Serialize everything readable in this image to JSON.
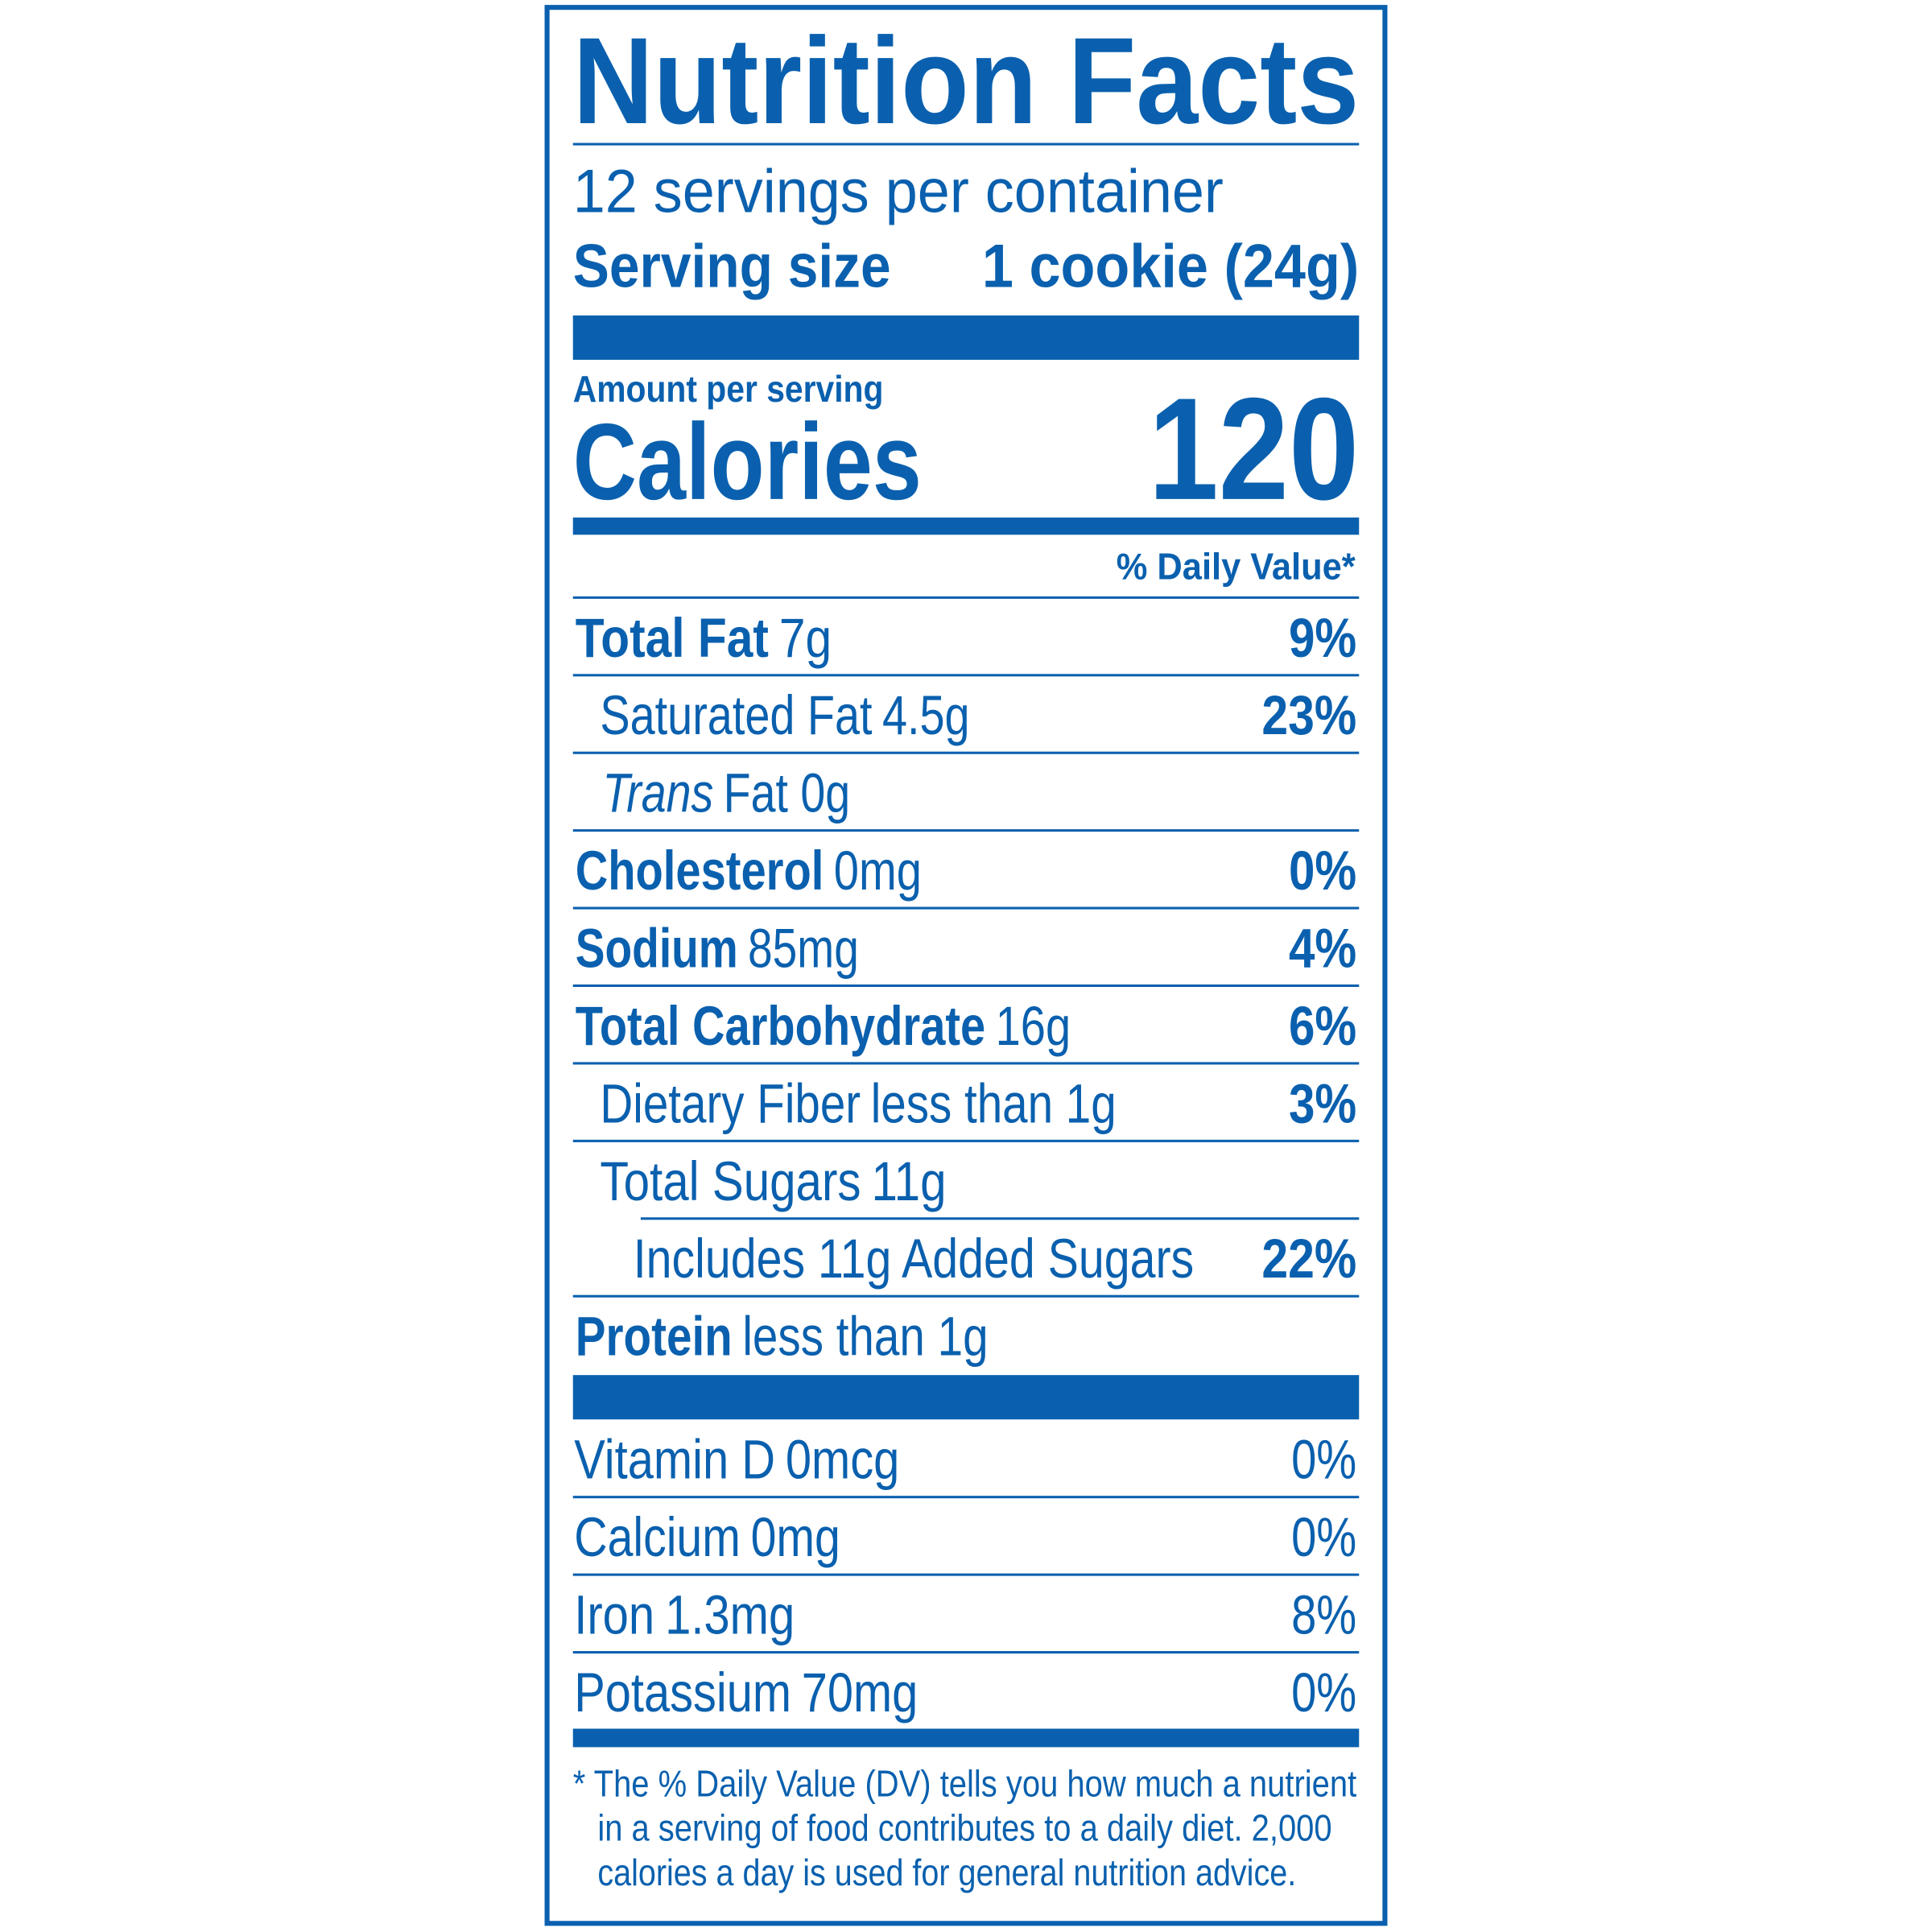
{
  "title": "Nutrition Facts",
  "servings": "12 servings per container",
  "serving_size": {
    "label": "Serving size",
    "value": "1 cookie (24g)"
  },
  "amount_per_serving": "Amount per serving",
  "calories": {
    "label": "Calories",
    "value": 120
  },
  "daily_value_header": "% Daily Value*",
  "nutrients": [
    {
      "name": "Total Fat",
      "amount": "7g",
      "dv": "9%"
    },
    {
      "name": "Saturated Fat",
      "amount": "4.5g",
      "dv": "23%"
    },
    {
      "name": "Trans",
      "amount": "Fat 0g"
    },
    {
      "name": "Cholesterol",
      "amount": "0mg",
      "dv": "0%"
    },
    {
      "name": "Sodium",
      "amount": "85mg",
      "dv": "4%"
    },
    {
      "name": "Total Carbohydrate",
      "amount": "16g",
      "dv": "6%"
    },
    {
      "name": "Dietary Fiber",
      "amount": "less than 1g",
      "dv": "3%"
    },
    {
      "name": "Total Sugars",
      "amount": "11g"
    },
    {
      "name": "Includes 11g Added Sugars",
      "dv": "22%"
    },
    {
      "name": "Protein",
      "amount": "less than 1g"
    }
  ],
  "vitamins": [
    {
      "name": "Vitamin D",
      "amount": "0mcg",
      "dv": "0%"
    },
    {
      "name": "Calcium",
      "amount": "0mg",
      "dv": "0%"
    },
    {
      "name": "Iron",
      "amount": "1.3mg",
      "dv": "8%"
    },
    {
      "name": "Potassium",
      "amount": "70mg",
      "dv": "0%"
    }
  ],
  "footnote": [
    "* The % Daily Value (DV) tells you how much a nutrient",
    "in a serving of food contributes to a daily diet. 2,000",
    "calories a day is used for general nutrition advice."
  ]
}
